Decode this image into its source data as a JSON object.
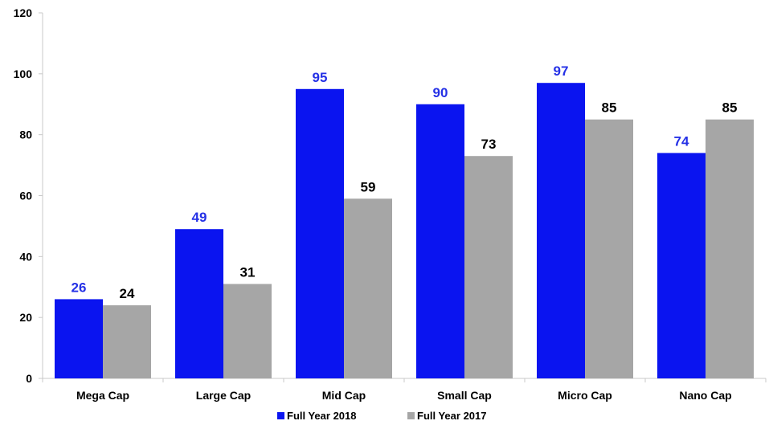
{
  "chart_data": {
    "type": "bar",
    "title": "",
    "xlabel": "",
    "ylabel": "",
    "categories": [
      "Mega Cap",
      "Large Cap",
      "Mid Cap",
      "Small Cap",
      "Micro Cap",
      "Nano Cap"
    ],
    "series": [
      {
        "name": "Full Year 2018",
        "values": [
          26,
          49,
          95,
          90,
          97,
          74
        ],
        "color": "#0a14f0",
        "label_color": "#2531e6"
      },
      {
        "name": "Full Year 2017",
        "values": [
          24,
          31,
          59,
          73,
          85,
          85
        ],
        "color": "#a6a6a6",
        "label_color": "#000000"
      }
    ],
    "ylim": [
      0,
      120
    ],
    "yticks": [
      "0",
      "20",
      "40",
      "60",
      "80",
      "100",
      "120"
    ],
    "grid": false,
    "legend": "bottom"
  }
}
